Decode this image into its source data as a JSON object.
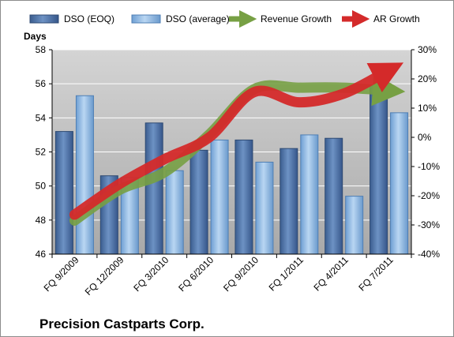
{
  "chart_data": {
    "type": "bar",
    "title": "",
    "company": "Precision Castparts Corp.",
    "ylabel": "Days",
    "xlabel": "",
    "ylim": [
      46,
      58
    ],
    "y_ticks": [
      46,
      48,
      50,
      52,
      54,
      56,
      58
    ],
    "y2lim": [
      -40,
      30
    ],
    "y2_ticks": [
      "-40%",
      "-30%",
      "-20%",
      "-10%",
      "0%",
      "10%",
      "20%",
      "30%"
    ],
    "y2_tick_values": [
      -40,
      -30,
      -20,
      -10,
      0,
      10,
      20,
      30
    ],
    "categories": [
      "FQ 9/2009",
      "FQ 12/2009",
      "FQ 3/2010",
      "FQ 6/2010",
      "FQ 9/2010",
      "FQ 1/2011",
      "FQ 4/2011",
      "FQ 7/2011"
    ],
    "series": [
      {
        "name": "DSO (EOQ)",
        "type": "bar",
        "color": "#4a6fa5",
        "values": [
          53.2,
          50.6,
          53.7,
          52.1,
          52.7,
          52.2,
          52.8,
          55.9
        ]
      },
      {
        "name": "DSO (average)",
        "type": "bar",
        "color": "#86b4e3",
        "values": [
          55.3,
          50.5,
          50.9,
          52.7,
          51.4,
          53.0,
          49.4,
          54.3
        ]
      },
      {
        "name": "Revenue Growth",
        "type": "line",
        "axis": "y2",
        "color": "#77a044",
        "values": [
          -28.5,
          -18,
          -12,
          1,
          16.5,
          17,
          17,
          16
        ]
      },
      {
        "name": "AR Growth",
        "type": "line",
        "axis": "y2",
        "color": "#d42a2a",
        "values": [
          -26.5,
          -16,
          -7.5,
          0,
          15.5,
          12,
          15,
          23
        ]
      }
    ],
    "grid": true,
    "legend_position": "top",
    "colors": {
      "plot_bg_top": "#d4d4d4",
      "plot_bg_bottom": "#a9a9a9"
    }
  }
}
